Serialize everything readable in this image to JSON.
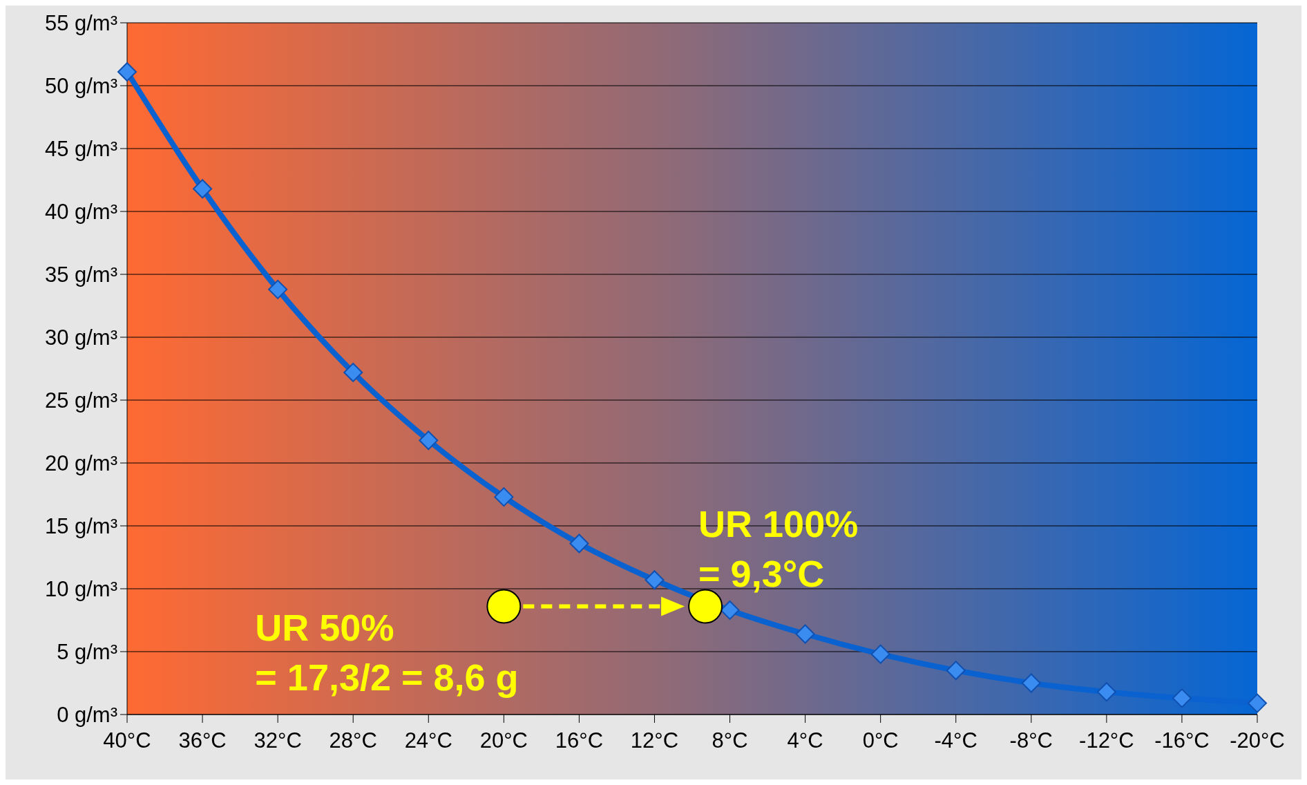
{
  "chart_data": {
    "type": "line",
    "x": [
      40,
      36,
      32,
      28,
      24,
      20,
      16,
      12,
      8,
      4,
      0,
      -4,
      -8,
      -12,
      -16,
      -20
    ],
    "series": [
      {
        "color": "#0a62d0",
        "marker": "diamond",
        "values": [
          51.1,
          41.8,
          33.8,
          27.2,
          21.8,
          17.3,
          13.6,
          10.7,
          8.3,
          6.4,
          4.8,
          3.5,
          2.5,
          1.8,
          1.3,
          0.9
        ]
      },
      {
        "type": "scatter",
        "color": "#ffff00",
        "marker": "circle",
        "x": [
          20,
          9.3
        ],
        "values": [
          8.6,
          8.6
        ]
      }
    ],
    "xlim": [
      40,
      -20
    ],
    "xticks": [
      {
        "value": 40,
        "label": "40°C"
      },
      {
        "value": 36,
        "label": "36°C"
      },
      {
        "value": 32,
        "label": "32°C"
      },
      {
        "value": 28,
        "label": "28°C"
      },
      {
        "value": 24,
        "label": "24°C"
      },
      {
        "value": 20,
        "label": "20°C"
      },
      {
        "value": 16,
        "label": "16°C"
      },
      {
        "value": 12,
        "label": "12°C"
      },
      {
        "value": 8,
        "label": "8°C"
      },
      {
        "value": 4,
        "label": "4°C"
      },
      {
        "value": 0,
        "label": "0°C"
      },
      {
        "value": -4,
        "label": "-4°C"
      },
      {
        "value": -8,
        "label": "-8°C"
      },
      {
        "value": -12,
        "label": "-12°C"
      },
      {
        "value": -16,
        "label": "-16°C"
      },
      {
        "value": -20,
        "label": "-20°C"
      }
    ],
    "ylim": [
      0,
      55
    ],
    "yticks": [
      {
        "value": 0,
        "label": "0 g/m³"
      },
      {
        "value": 5,
        "label": "5 g/m³"
      },
      {
        "value": 10,
        "label": "10 g/m³"
      },
      {
        "value": 15,
        "label": "15 g/m³"
      },
      {
        "value": 20,
        "label": "20 g/m³"
      },
      {
        "value": 25,
        "label": "25 g/m³"
      },
      {
        "value": 30,
        "label": "30 g/m³"
      },
      {
        "value": 35,
        "label": "35 g/m³"
      },
      {
        "value": 40,
        "label": "40 g/m³"
      },
      {
        "value": 45,
        "label": "45 g/m³"
      },
      {
        "value": 50,
        "label": "50 g/m³"
      },
      {
        "value": 55,
        "label": "55 g/m³"
      }
    ],
    "grid": "y",
    "line_style": "solid",
    "annotations": [
      {
        "text": "UR 50%\n= 17,3/2 = 8,6 g",
        "x": 20,
        "y": 8.6
      },
      {
        "text": "UR 100%\n= 9,3°C",
        "x": 9.3,
        "y": 8.6
      }
    ]
  }
}
